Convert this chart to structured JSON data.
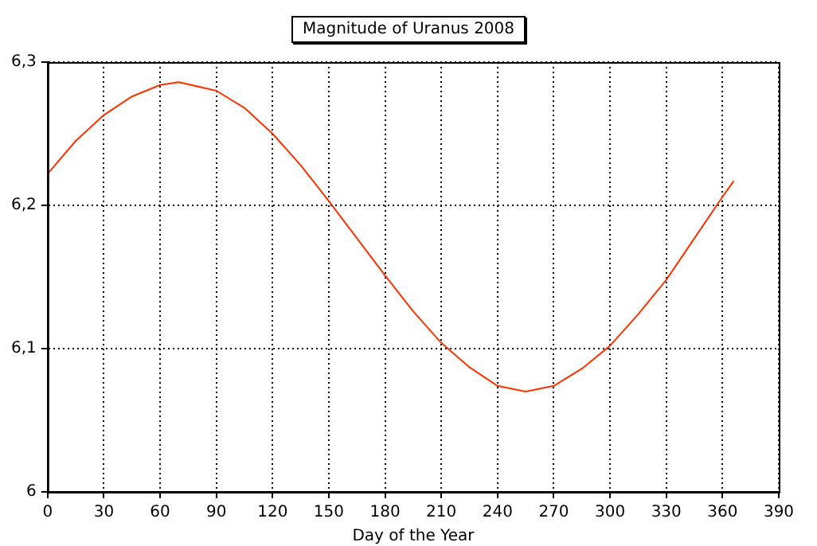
{
  "chart_data": {
    "type": "line",
    "title": "Magnitude of Uranus 2008",
    "xlabel": "Day of the Year",
    "x": [
      0,
      15,
      30,
      45,
      60,
      70,
      90,
      105,
      120,
      135,
      150,
      165,
      180,
      195,
      210,
      225,
      240,
      255,
      270,
      285,
      300,
      315,
      330,
      345,
      360,
      366
    ],
    "series": [
      {
        "color": "#ff3300",
        "values": [
          6.222,
          6.245,
          6.263,
          6.276,
          6.284,
          6.286,
          6.28,
          6.268,
          6.25,
          6.228,
          6.203,
          6.177,
          6.151,
          6.126,
          6.104,
          6.087,
          6.074,
          6.07,
          6.074,
          6.086,
          6.102,
          6.124,
          6.148,
          6.177,
          6.206,
          6.217
        ]
      }
    ],
    "xlim": [
      0,
      390
    ],
    "xticks": [
      0,
      30,
      60,
      90,
      120,
      150,
      180,
      210,
      240,
      270,
      300,
      330,
      360,
      390
    ],
    "ylim": [
      6,
      6.3
    ],
    "yticks": [
      {
        "value": 6,
        "label": "6"
      },
      {
        "value": 6.1,
        "label": "6,1"
      },
      {
        "value": 6.2,
        "label": "6,2"
      },
      {
        "value": 6.3,
        "label": "6,3"
      }
    ],
    "grid": true,
    "legend": false,
    "marker": "none",
    "line_style": "solid"
  }
}
